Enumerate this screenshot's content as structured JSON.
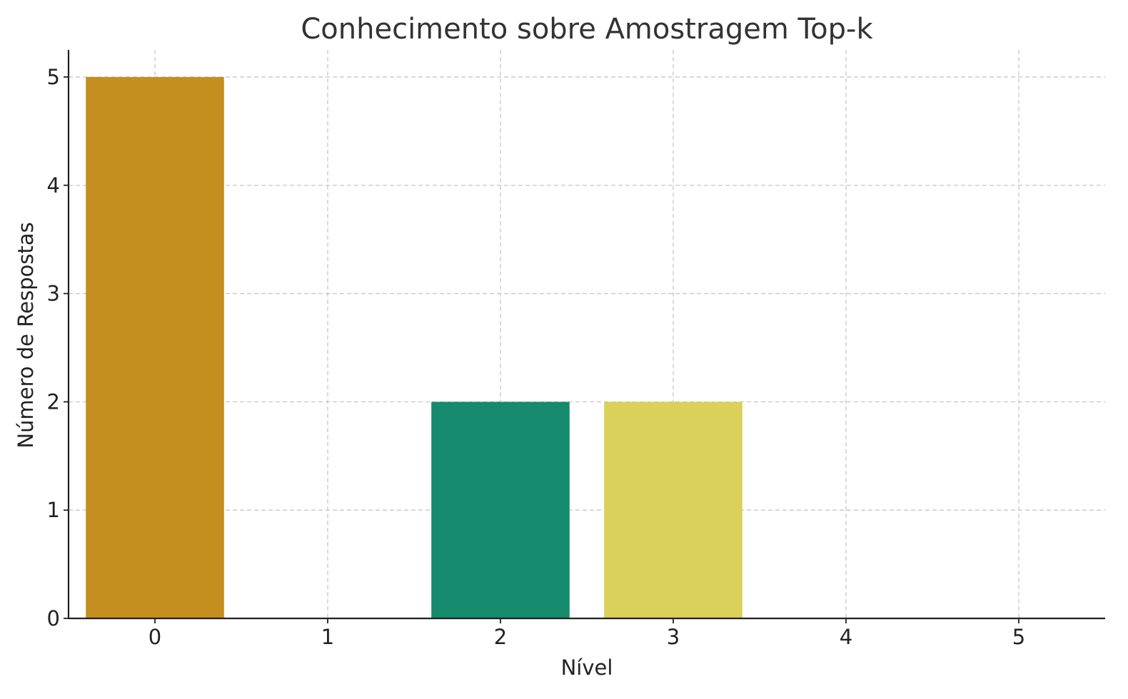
{
  "chart_data": {
    "type": "bar",
    "title": "Conhecimento sobre Amostragem Top-k",
    "xlabel": "Nível",
    "ylabel": "Número de Respostas",
    "categories": [
      "0",
      "1",
      "2",
      "3",
      "4",
      "5"
    ],
    "values": [
      5,
      0,
      2,
      2,
      0,
      0
    ],
    "colors": [
      "#C48F1F",
      "#C48F1F",
      "#168A6C",
      "#D9D159",
      "#C48F1F",
      "#C48F1F"
    ],
    "yticks": [
      0,
      1,
      2,
      3,
      4,
      5
    ],
    "ylim": [
      0,
      5.25
    ],
    "xlim": [
      -0.5,
      5.5
    ],
    "grid": true,
    "legend": "none"
  }
}
